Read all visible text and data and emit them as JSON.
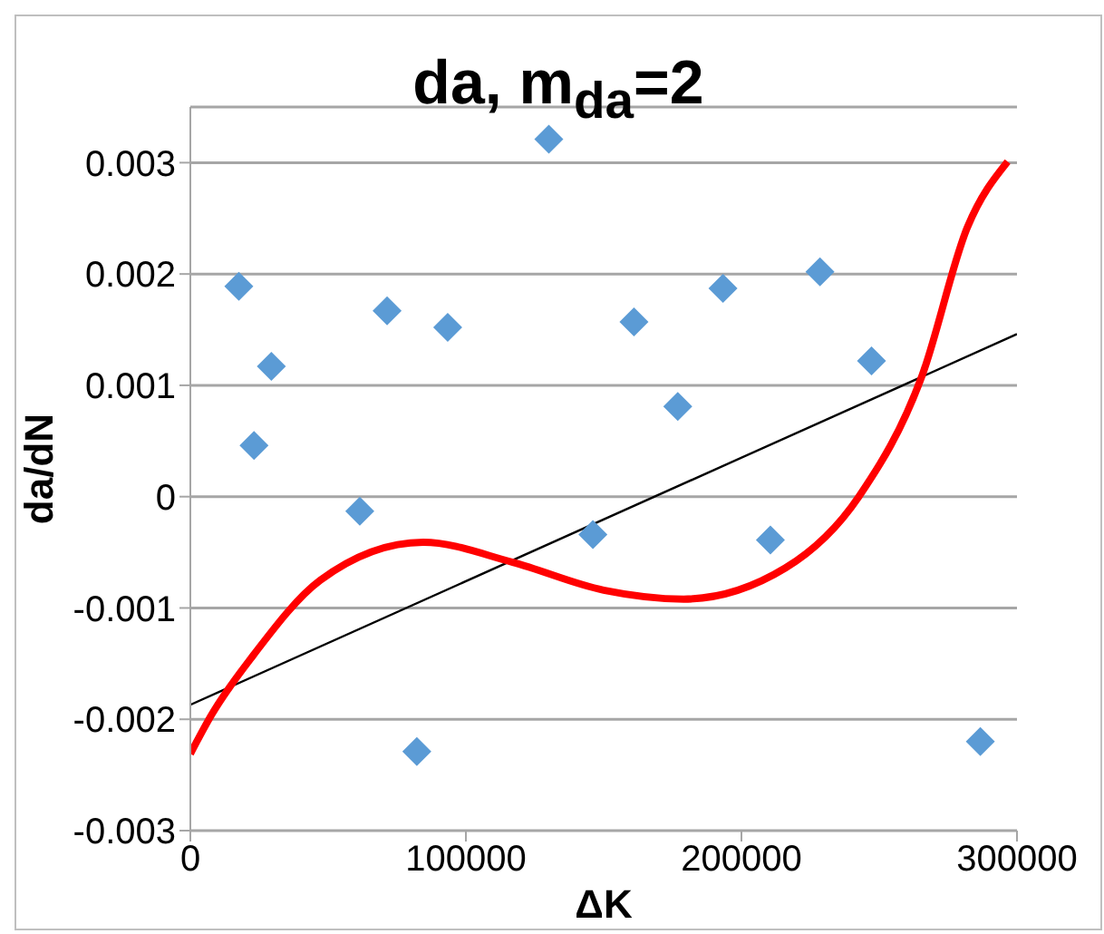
{
  "chart_data": {
    "type": "scatter",
    "title": "da, m$_{da}$=2",
    "xlabel": "ΔK",
    "ylabel": "da/dN",
    "xlim": [
      0,
      300000
    ],
    "xticks": [
      0,
      100000,
      200000,
      300000
    ],
    "ylim": [
      -0.003,
      0.0035
    ],
    "yticks": [
      -0.003,
      -0.002,
      -0.001,
      0,
      0.001,
      0.002,
      0.003
    ],
    "grid": "y",
    "legend": false,
    "series": [
      {
        "color": "#5b9bd5",
        "marker": "diamond",
        "x": [
          17600,
          23100,
          29400,
          61500,
          71400,
          82200,
          93400,
          130100,
          146100,
          161000,
          176900,
          193300,
          210500,
          228500,
          247200,
          286700
        ],
        "values": [
          0.00189,
          0.00046,
          0.00117,
          -0.00013,
          0.00167,
          -0.00229,
          0.00152,
          0.00321,
          -0.00034,
          0.00157,
          0.00081,
          0.00187,
          -0.00039,
          0.00202,
          0.00122,
          -0.0022
        ]
      },
      {
        "type": "line",
        "color": "#000000",
        "marker": "none",
        "x": [
          0,
          300000
        ],
        "values": [
          -0.00187,
          0.00146
        ]
      },
      {
        "type": "line",
        "color": "#ff0000",
        "marker": "none",
        "x": [
          0,
          7700,
          23000,
          47200,
          84500,
          117000,
          150000,
          179000,
          216000,
          242600,
          265600,
          282000,
          296600
        ],
        "values": [
          -0.00231,
          -0.00196,
          -0.00142,
          -0.00075,
          -0.00041,
          -0.00059,
          -0.00084,
          -0.00092,
          -0.00064,
          0,
          0.00109,
          0.00242,
          0.00301
        ]
      }
    ]
  }
}
